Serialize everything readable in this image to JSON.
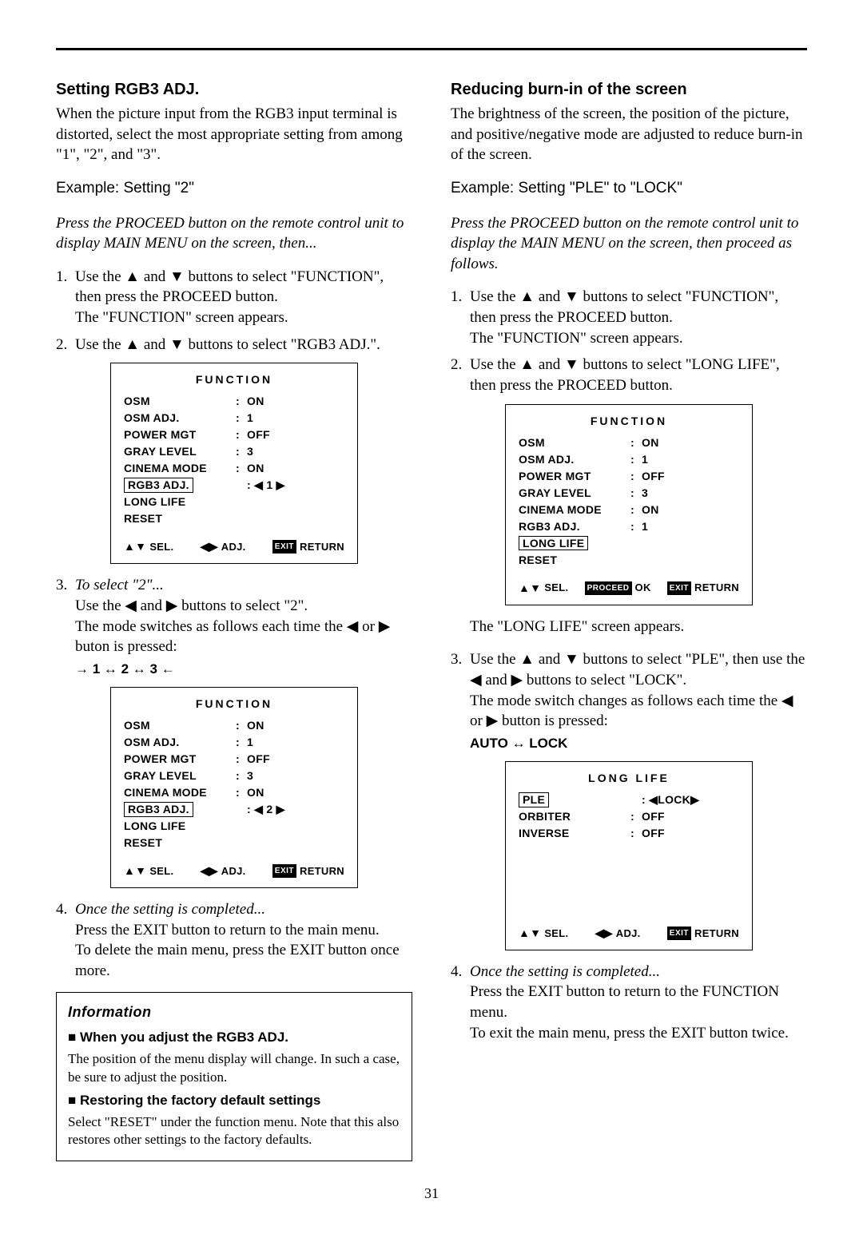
{
  "left": {
    "heading": "Setting RGB3 ADJ.",
    "intro": "When the picture input from the RGB3 input terminal is distorted, select the most appropriate setting from among \"1\", \"2\", and \"3\".",
    "example": "Example: Setting \"2\"",
    "press": "Press the PROCEED button on the remote control unit to display MAIN MENU on the screen, then...",
    "step1a": "Use the ▲ and ▼ buttons to select \"FUNCTION\", then press the PROCEED button.",
    "step1b": "The \"FUNCTION\" screen appears.",
    "step2": "Use the ▲ and ▼ buttons to select \"RGB3 ADJ.\".",
    "osd1": {
      "title": "FUNCTION",
      "rows": [
        {
          "label": "OSM",
          "val": "ON"
        },
        {
          "label": "OSM ADJ.",
          "val": "1"
        },
        {
          "label": "POWER MGT",
          "val": "OFF"
        },
        {
          "label": "GRAY LEVEL",
          "val": "3"
        },
        {
          "label": "CINEMA MODE",
          "val": "ON"
        },
        {
          "label": "RGB3 ADJ.",
          "val": "◀ 1 ▶",
          "sel": true,
          "nocolon": true
        },
        {
          "label": "LONG LIFE",
          "val": ""
        },
        {
          "label": "RESET",
          "val": ""
        }
      ],
      "foot": {
        "sel": "SEL.",
        "adj": "ADJ.",
        "ret": "RETURN"
      }
    },
    "step3title": "To select \"2\"...",
    "step3a": "Use the ◀ and ▶ buttons to select \"2\".",
    "step3b": "The mode switches as follows each time the ◀ or ▶ buton is pressed:",
    "seq": "→ 1 ↔ 2 ↔ 3 ←",
    "osd2": {
      "title": "FUNCTION",
      "rows": [
        {
          "label": "OSM",
          "val": "ON"
        },
        {
          "label": "OSM ADJ.",
          "val": "1"
        },
        {
          "label": "POWER MGT",
          "val": "OFF"
        },
        {
          "label": "GRAY LEVEL",
          "val": "3"
        },
        {
          "label": "CINEMA MODE",
          "val": "ON"
        },
        {
          "label": "RGB3 ADJ.",
          "val": "◀ 2 ▶",
          "sel": true,
          "nocolon": true
        },
        {
          "label": "LONG LIFE",
          "val": ""
        },
        {
          "label": "RESET",
          "val": ""
        }
      ],
      "foot": {
        "sel": "SEL.",
        "adj": "ADJ.",
        "ret": "RETURN"
      }
    },
    "step4title": "Once the setting is completed...",
    "step4a": "Press the EXIT button to return to the main menu.",
    "step4b": "To delete the main menu, press the EXIT button once more.",
    "info": {
      "title": "Information",
      "sub1": "■ When you adjust the RGB3 ADJ.",
      "p1": "The position of the menu display will change. In such a case, be sure to adjust the position.",
      "sub2": "■ Restoring the factory default settings",
      "p2": "Select \"RESET\" under the function menu. Note that this also restores other settings to the factory defaults."
    }
  },
  "right": {
    "heading": "Reducing burn-in of the screen",
    "intro": "The brightness of the screen, the position of the picture, and positive/negative mode are adjusted to reduce burn-in of the screen.",
    "example": "Example: Setting \"PLE\" to \"LOCK\"",
    "press": "Press the PROCEED button on the remote control unit to display the MAIN MENU on the screen, then proceed as follows.",
    "step1a": "Use the ▲ and ▼ buttons to select \"FUNCTION\", then press the PROCEED button.",
    "step1b": "The \"FUNCTION\" screen appears.",
    "step2": "Use the ▲ and ▼ buttons to select \"LONG LIFE\", then press the PROCEED button.",
    "osd1": {
      "title": "FUNCTION",
      "rows": [
        {
          "label": "OSM",
          "val": "ON"
        },
        {
          "label": "OSM ADJ.",
          "val": "1"
        },
        {
          "label": "POWER MGT",
          "val": "OFF"
        },
        {
          "label": "GRAY LEVEL",
          "val": "3"
        },
        {
          "label": "CINEMA MODE",
          "val": "ON"
        },
        {
          "label": "RGB3 ADJ.",
          "val": "1"
        },
        {
          "label": "LONG LIFE",
          "val": "",
          "sel": true
        },
        {
          "label": "RESET",
          "val": ""
        }
      ],
      "foot": {
        "sel": "SEL.",
        "ok": "OK",
        "ret": "RETURN",
        "proceed": true
      }
    },
    "longlife": "The \"LONG LIFE\" screen appears.",
    "step3a": "Use the ▲ and ▼ buttons to select \"PLE\", then use the ◀ and ▶ buttons to select \"LOCK\".",
    "step3b": "The mode switch changes as follows each time the ◀ or ▶ button is pressed:",
    "seq": "AUTO ↔ LOCK",
    "osd2": {
      "title": "LONG LIFE",
      "rows": [
        {
          "label": "PLE",
          "val": "◀LOCK▶",
          "sel": true,
          "nocolon": true
        },
        {
          "label": "ORBITER",
          "val": "OFF"
        },
        {
          "label": "INVERSE",
          "val": "OFF"
        }
      ],
      "foot": {
        "sel": "SEL.",
        "adj": "ADJ.",
        "ret": "RETURN"
      },
      "tall": true
    },
    "step4title": "Once the setting is completed...",
    "step4a": "Press the EXIT button to return to the FUNCTION menu.",
    "step4b": "To exit the main menu, press the EXIT button twice."
  },
  "pagenum": "31"
}
